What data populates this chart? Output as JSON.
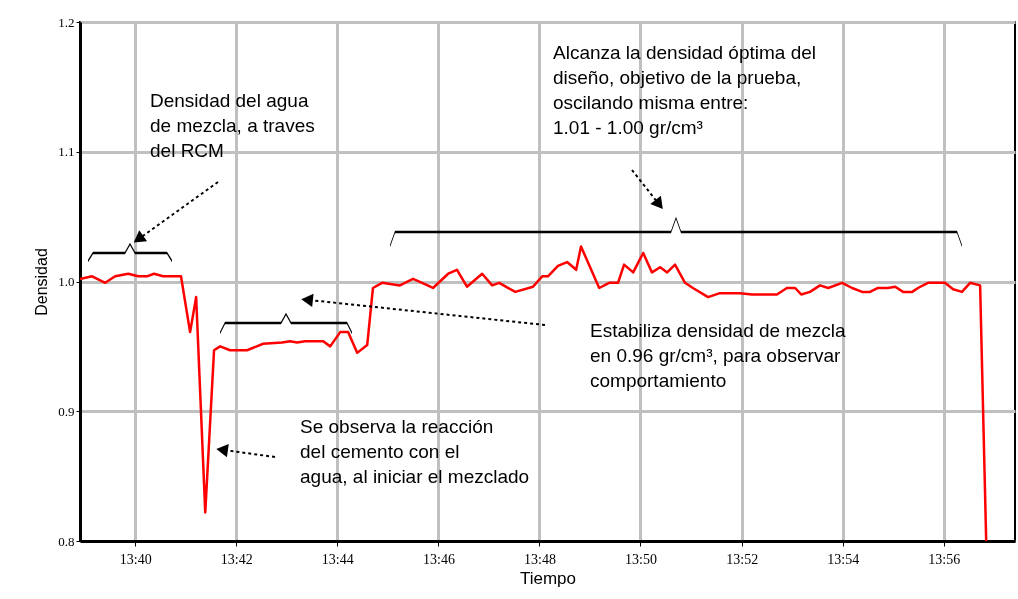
{
  "chart_data": {
    "type": "line",
    "xlabel": "Tiempo",
    "ylabel": "Densidad",
    "x": [
      13.6485,
      13.6525,
      13.6568,
      13.6601,
      13.6644,
      13.6677,
      13.6706,
      13.6729,
      13.6759,
      13.6818,
      13.6848,
      13.6868,
      13.6898,
      13.6927,
      13.6947,
      13.698,
      13.7036,
      13.7089,
      13.7151,
      13.7178,
      13.7201,
      13.7227,
      13.7287,
      13.731,
      13.7343,
      13.7369,
      13.7399,
      13.7432,
      13.7451,
      13.7481,
      13.754,
      13.7583,
      13.7613,
      13.7649,
      13.7699,
      13.7728,
      13.7761,
      13.7811,
      13.7844,
      13.7867,
      13.792,
      13.7979,
      13.8009,
      13.8028,
      13.8061,
      13.8091,
      13.8121,
      13.8137,
      13.8197,
      13.823,
      13.8259,
      13.8279,
      13.8309,
      13.8342,
      13.8371,
      13.8398,
      13.8421,
      13.8447,
      13.848,
      13.8506,
      13.8556,
      13.8595,
      13.8661,
      13.8701,
      13.8783,
      13.8816,
      13.8843,
      13.8863,
      13.8892,
      13.8925,
      13.8952,
      13.8998,
      13.9031,
      13.9064,
      13.909,
      13.9116,
      13.9149,
      13.9173,
      13.9199,
      13.9229,
      13.9248,
      13.9281,
      13.9337,
      13.9364,
      13.9393,
      13.942,
      13.9453,
      13.9473
    ],
    "series": [
      {
        "color": "#ff0000",
        "values": [
          1.002,
          1.004,
          0.999,
          1.004,
          1.006,
          1.004,
          1.004,
          1.006,
          1.004,
          1.004,
          0.961,
          0.988,
          0.822,
          0.947,
          0.95,
          0.947,
          0.947,
          0.952,
          0.953,
          0.954,
          0.953,
          0.954,
          0.954,
          0.95,
          0.961,
          0.961,
          0.945,
          0.951,
          0.995,
          0.999,
          0.997,
          1.002,
          0.999,
          0.995,
          1.006,
          1.009,
          0.996,
          1.006,
          0.997,
          0.999,
          0.992,
          0.996,
          1.004,
          1.004,
          1.012,
          1.015,
          1.009,
          1.027,
          0.995,
          0.999,
          0.999,
          1.013,
          1.007,
          1.022,
          1.007,
          1.011,
          1.007,
          1.013,
          0.999,
          0.995,
          0.988,
          0.991,
          0.991,
          0.99,
          0.99,
          0.995,
          0.995,
          0.99,
          0.992,
          0.997,
          0.995,
          0.999,
          0.995,
          0.992,
          0.992,
          0.995,
          0.995,
          0.996,
          0.992,
          0.992,
          0.995,
          0.999,
          0.999,
          0.994,
          0.992,
          0.999,
          0.997,
          0.8
        ]
      }
    ],
    "xlim": [
      13.6485,
      13.9568
    ],
    "xticks": [
      {
        "value": 13.6667,
        "label": "13:40"
      },
      {
        "value": 13.7,
        "label": "13:42"
      },
      {
        "value": 13.7333,
        "label": "13:44"
      },
      {
        "value": 13.7667,
        "label": "13:46"
      },
      {
        "value": 13.8,
        "label": "13:48"
      },
      {
        "value": 13.8333,
        "label": "13:50"
      },
      {
        "value": 13.8667,
        "label": "13:52"
      },
      {
        "value": 13.9,
        "label": "13:54"
      },
      {
        "value": 13.9333,
        "label": "13:56"
      }
    ],
    "ylim": [
      0.8,
      1.2
    ],
    "yticks": [
      0.8,
      0.9,
      {
        "value": 1.0,
        "label": "1.0"
      },
      1.1,
      1.2
    ],
    "grid": true,
    "marker": "none",
    "line_style": "solid",
    "annotations": [
      "Densidad del agua\nde mezcla, a traves\ndel RCM",
      "Alcanza la densidad óptima del\ndiseño, objetivo de la prueba,\noscilando misma entre:\n1.01 - 1.00 gr/cm³",
      "Estabiliza densidad de mezcla\nen 0.96 gr/cm³, para observar\ncomportamiento",
      "Se observa la reacción\ndel cemento con el\nagua, al iniciar el mezclado"
    ]
  }
}
